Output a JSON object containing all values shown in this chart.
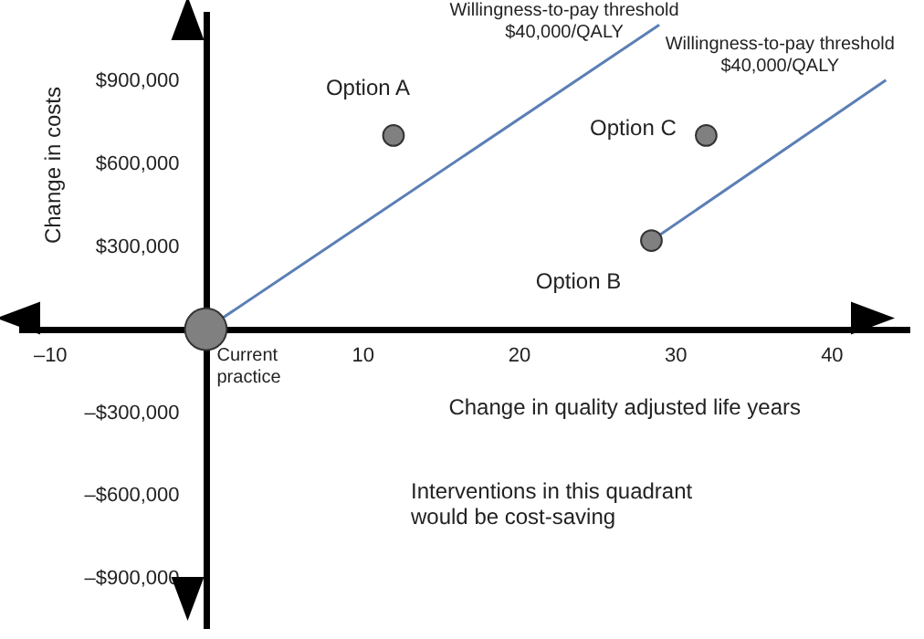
{
  "chart_data": {
    "type": "bubble",
    "xlabel": "Change in quality adjusted life years",
    "ylabel": "Change in costs",
    "xlim": [
      -12,
      45
    ],
    "ylim": [
      -1080000,
      1150000
    ],
    "xticks": [
      {
        "value": -10,
        "label": "–10"
      },
      10,
      20,
      30,
      40
    ],
    "yticks": [
      {
        "value": -900000,
        "label": "–$900,000"
      },
      {
        "value": -600000,
        "label": "–$600,000"
      },
      {
        "value": -300000,
        "label": "–$300,000"
      },
      {
        "value": 300000,
        "label": "$300,000"
      },
      {
        "value": 600000,
        "label": "$600,000"
      },
      {
        "value": 900000,
        "label": "$900,000"
      }
    ],
    "series": [
      {
        "type": "line",
        "color": "#5b7fb5",
        "x": [
          0,
          29
        ],
        "values": [
          0,
          1100000
        ]
      },
      {
        "type": "line",
        "color": "#5b7fb5",
        "x": [
          28.5,
          43.5
        ],
        "values": [
          320000,
          900000
        ]
      },
      {
        "type": "bubble",
        "color": "#808080",
        "x": [
          0,
          12,
          28.5,
          32
        ],
        "values": [
          0,
          700000,
          320000,
          700000
        ],
        "sizes": [
          1,
          0.25,
          0.25,
          0.25
        ]
      }
    ],
    "annotations": [
      {
        "text": "Current practice",
        "x": 0,
        "y": 0
      },
      {
        "text": "Option A",
        "x": 12,
        "y": 700000
      },
      {
        "text": "Option B",
        "x": 28.5,
        "y": 320000
      },
      {
        "text": "Option C",
        "x": 32,
        "y": 700000
      },
      {
        "text": "Willingness-to-pay threshold\n$40,000/QALY",
        "x": 29,
        "y": 1100000
      },
      {
        "text": "Willingness-to-pay threshold\n$40,000/QALY",
        "x": 43.5,
        "y": 900000
      },
      "Interventions in this quadrant\nwould be cost-saving"
    ],
    "grid": false
  }
}
